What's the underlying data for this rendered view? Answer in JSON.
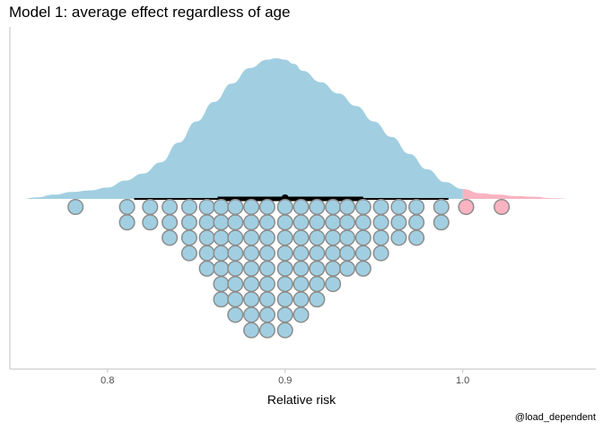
{
  "chart_data": {
    "type": "dotplot-halfeye",
    "title": "Model 1: average effect regardless of age",
    "xlabel": "Relative risk",
    "ylabel": "",
    "caption": "@load_dependent",
    "xlim": [
      0.745,
      1.075
    ],
    "x_ticks": [
      0.8,
      0.9,
      1.0
    ],
    "x_tick_labels": [
      "0.8",
      "0.9",
      "1.0"
    ],
    "threshold": 1.0,
    "colors": {
      "below_threshold": "#a1cfe1",
      "above_threshold": "#f9b3c1",
      "dot_stroke": "#8c8c8c",
      "interval": "#000000",
      "axis": "#cccccc"
    },
    "density": {
      "x": [
        0.752,
        0.76,
        0.77,
        0.78,
        0.79,
        0.8,
        0.81,
        0.82,
        0.83,
        0.84,
        0.85,
        0.86,
        0.87,
        0.88,
        0.89,
        0.895,
        0.9,
        0.905,
        0.91,
        0.92,
        0.93,
        0.94,
        0.95,
        0.96,
        0.97,
        0.98,
        0.99,
        1.0,
        1.01,
        1.02,
        1.03,
        1.04,
        1.05,
        1.062
      ],
      "y": [
        0.0,
        0.01,
        0.03,
        0.05,
        0.06,
        0.08,
        0.13,
        0.18,
        0.26,
        0.4,
        0.55,
        0.69,
        0.82,
        0.93,
        0.99,
        1.0,
        0.99,
        0.96,
        0.91,
        0.83,
        0.75,
        0.66,
        0.55,
        0.44,
        0.32,
        0.21,
        0.12,
        0.07,
        0.04,
        0.03,
        0.02,
        0.015,
        0.005,
        0.0
      ]
    },
    "point_estimate": 0.9,
    "interval_thick": [
      0.862,
      0.944
    ],
    "interval_thin": [
      0.815,
      0.992
    ],
    "dots": {
      "x": [
        0.782,
        0.811,
        0.824,
        0.835,
        0.846,
        0.856,
        0.864,
        0.872,
        0.881,
        0.89,
        0.9,
        0.909,
        0.918,
        0.927,
        0.935,
        0.944,
        0.954,
        0.964,
        0.974,
        0.988,
        1.002,
        1.022
      ],
      "counts": [
        1,
        2,
        2,
        3,
        4,
        5,
        7,
        8,
        9,
        9,
        9,
        8,
        7,
        6,
        5,
        5,
        4,
        3,
        3,
        2,
        1,
        1
      ]
    }
  }
}
